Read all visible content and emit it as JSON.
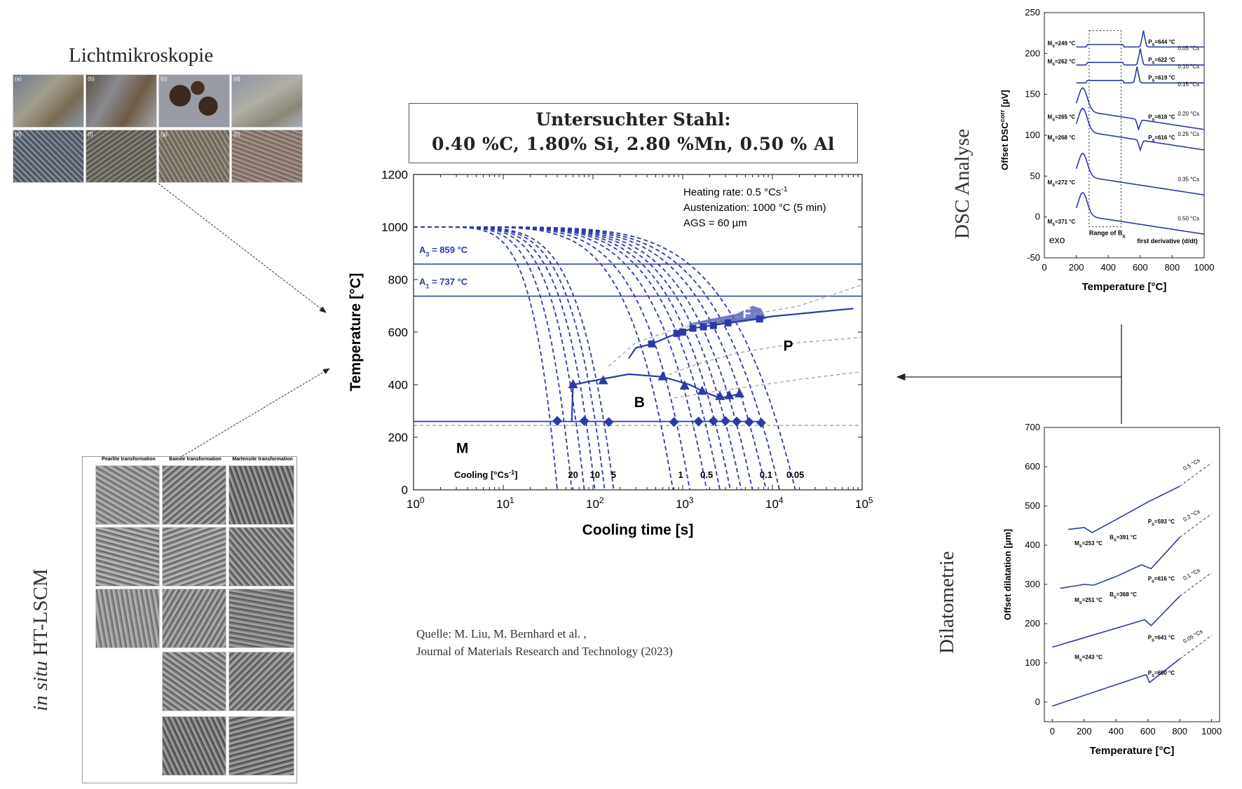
{
  "labels": {
    "microscopy": "Lichtmikroskopie",
    "lscm_italic": "in situ",
    "lscm": "HT-LSCM",
    "dsc": "DSC Analyse",
    "dilatometry": "Dilatometrie"
  },
  "steel_box": {
    "line1": "Untersuchter Stahl:",
    "line2": "0.40 %C, 1.80% Si, 2.80 %Mn, 0.50 % Al"
  },
  "source": {
    "line1": "Quelle: M. Liu, M. Bernhard et al. ,",
    "line2": "Journal of Materials Research and Technology (2023)"
  },
  "micro_tiles": [
    "(a)",
    "(b)",
    "(c)",
    "(d)",
    "(e)",
    "(f)",
    "(g)",
    "(h)"
  ],
  "lscm_headers": [
    "Pearlite transformation",
    "Bainite transformation",
    "Martensite transformation"
  ],
  "colors": {
    "curve": "#2b3aa8",
    "shade": "#5b64bf",
    "ref": "#999999"
  },
  "chart_data": [
    {
      "type": "line",
      "id": "cct",
      "xlabel": "Cooling time [s]",
      "ylabel": "Temperature [°C]",
      "xscale": "log",
      "xlim": [
        1,
        100000
      ],
      "ylim": [
        0,
        1200
      ],
      "yticks": [
        "0",
        "200",
        "400",
        "600",
        "800",
        "1000",
        "1200"
      ],
      "xticks": [
        "10",
        "10",
        "10",
        "10",
        "10",
        "10"
      ],
      "xtick_exp": [
        "0",
        "1",
        "2",
        "3",
        "4",
        "5"
      ],
      "annotations": {
        "heating": "Heating rate: 0.5 °Cs",
        "heating_sup": "-1",
        "austenization": "Austenization: 1000 °C (5 min)",
        "ags": "AGS = 60 µm",
        "a3": "A",
        "a3_sub": "3",
        "a3_val": " = 859 °C",
        "a1": "A",
        "a1_sub": "1",
        "a1_val": " = 737 °C",
        "cooling": "Cooling [°Cs",
        "cooling_sup": "-1",
        "cooling_end": "]",
        "phase_F": "F",
        "phase_P": "P",
        "phase_B": "B",
        "phase_M": "M"
      },
      "A3": 859,
      "A1": 737,
      "Ms": 260,
      "cooling_rates": [
        {
          "label": "20",
          "x": 60
        },
        {
          "label": "10",
          "x": 105
        },
        {
          "label": "5",
          "x": 170
        },
        {
          "label": "1",
          "x": 950
        },
        {
          "label": "0.5",
          "x": 1850
        },
        {
          "label": "0.1",
          "x": 8500
        },
        {
          "label": "0.05",
          "x": 18000
        }
      ],
      "curve_ends": [
        40,
        58,
        80,
        105,
        135,
        170,
        780,
        1200,
        1850,
        2600,
        3400,
        4500,
        6000,
        8500,
        12000,
        18000
      ],
      "ferrite_start": [
        [
          860,
          595
        ],
        [
          1000,
          600
        ],
        [
          1300,
          615
        ],
        [
          1700,
          620
        ],
        [
          2200,
          625
        ],
        [
          3200,
          635
        ],
        [
          7200,
          650
        ]
      ],
      "pearlite_start": [
        [
          250,
          500
        ],
        [
          300,
          540
        ],
        [
          450,
          555
        ],
        [
          860,
          595
        ],
        [
          1300,
          615
        ],
        [
          3200,
          635
        ],
        [
          10000,
          660
        ],
        [
          80000,
          690
        ]
      ],
      "bainite_start": [
        [
          58,
          260
        ],
        [
          60,
          400
        ],
        [
          120,
          420
        ],
        [
          250,
          440
        ],
        [
          600,
          430
        ],
        [
          1200,
          400
        ],
        [
          1800,
          370
        ],
        [
          2600,
          350
        ],
        [
          3300,
          355
        ],
        [
          4200,
          365
        ]
      ],
      "bainite_markers": [
        [
          60,
          400
        ],
        [
          130,
          415
        ],
        [
          600,
          430
        ],
        [
          1050,
          395
        ],
        [
          1650,
          375
        ],
        [
          2600,
          355
        ],
        [
          3300,
          358
        ],
        [
          4300,
          365
        ]
      ],
      "ms_markers": [
        [
          40,
          262
        ],
        [
          80,
          262
        ],
        [
          150,
          258
        ],
        [
          800,
          258
        ],
        [
          1500,
          260
        ],
        [
          2200,
          262
        ],
        [
          3000,
          262
        ],
        [
          4000,
          260
        ],
        [
          5500,
          258
        ],
        [
          7500,
          255
        ]
      ],
      "ferrite_region": [
        [
          1100,
          630
        ],
        [
          2000,
          650
        ],
        [
          4000,
          670
        ],
        [
          6000,
          700
        ],
        [
          7500,
          690
        ],
        [
          8500,
          650
        ],
        [
          3000,
          630
        ],
        [
          1100,
          630
        ]
      ]
    },
    {
      "type": "line",
      "id": "dsc",
      "xlabel": "Temperature [°C]",
      "ylabel": "Offset DSC",
      "ylabel_sup": "corr",
      "ylabel_unit": " [µV]",
      "xlim": [
        0,
        1000
      ],
      "ylim": [
        -50,
        250
      ],
      "xticks": [
        "0",
        "200",
        "400",
        "600",
        "800",
        "1000"
      ],
      "yticks": [
        "-50",
        "0",
        "50",
        "100",
        "150",
        "200",
        "250"
      ],
      "notes": {
        "exo": "exo",
        "range": "Range of B",
        "range_sub": "S",
        "deriv": "first derivative (d/dt)"
      },
      "series": [
        {
          "name": "0.05 °Cs",
          "offset": 208,
          "ms": "M",
          "ms_sub": "S",
          "ms_val": "=249 °C",
          "ps": "P",
          "ps_sub": "S",
          "ps_val": "=644 °C",
          "peak": 620
        },
        {
          "name": "0.10 °Cs",
          "offset": 186,
          "ms": "M",
          "ms_sub": "S",
          "ms_val": "=262 °C",
          "ps": "P",
          "ps_sub": "S",
          "ps_val": "=622 °C",
          "peak": 600
        },
        {
          "name": "0.15 °Cs",
          "offset": 164,
          "ms": "",
          "ms_sub": "",
          "ms_val": "",
          "ps": "P",
          "ps_sub": "S",
          "ps_val": "=619 °C",
          "peak": 580
        },
        {
          "name": "0.20 °Cs",
          "offset": 128,
          "ms": "M",
          "ms_sub": "S",
          "ms_val": "=265 °C",
          "ps": "P",
          "ps_sub": "S",
          "ps_val": "=618 °C",
          "peak": 590
        },
        {
          "name": "0.25 °Cs",
          "offset": 103,
          "ms": "M",
          "ms_sub": "S",
          "ms_val": "=268 °C",
          "ps": "P",
          "ps_sub": "S",
          "ps_val": "=616 °C",
          "peak": 600
        },
        {
          "name": "0.35 °Cs",
          "offset": 48,
          "ms": "M",
          "ms_sub": "S",
          "ms_val": "=272 °C",
          "ps": "",
          "ps_sub": "",
          "ps_val": "",
          "peak": 0
        },
        {
          "name": "0.50 °Cs",
          "offset": 0,
          "ms": "M",
          "ms_sub": "S",
          "ms_val": "=371 °C",
          "ps": "",
          "ps_sub": "",
          "ps_val": "",
          "peak": 0
        }
      ]
    },
    {
      "type": "line",
      "id": "dil",
      "xlabel": "Temperature [°C]",
      "ylabel": "Offset dilatation [µm]",
      "xlim": [
        -50,
        1050
      ],
      "ylim": [
        -50,
        700
      ],
      "xticks": [
        "0",
        "200",
        "400",
        "600",
        "800",
        "1000"
      ],
      "yticks": [
        "0",
        "100",
        "200",
        "300",
        "400",
        "500",
        "600",
        "700"
      ],
      "series": [
        {
          "name": "0.5 °Cs",
          "labels": [
            "M",
            "S",
            "=253 °C",
            "B",
            "S",
            "=391 °C",
            "P",
            "S",
            "=593 °C"
          ]
        },
        {
          "name": "0.2 °Cs",
          "labels": [
            "M",
            "S",
            "=251 °C",
            "B",
            "S",
            "=368 °C",
            "P",
            "S",
            "=616 °C"
          ]
        },
        {
          "name": "0.1 °Cs",
          "labels": [
            "M",
            "S",
            "=243 °C",
            "",
            "",
            "",
            "P",
            "S",
            "=641 °C"
          ]
        },
        {
          "name": "0.05 °Cs",
          "labels": [
            "",
            "",
            "",
            "",
            "",
            "",
            "P",
            "S",
            "=650 °C"
          ]
        }
      ]
    }
  ]
}
